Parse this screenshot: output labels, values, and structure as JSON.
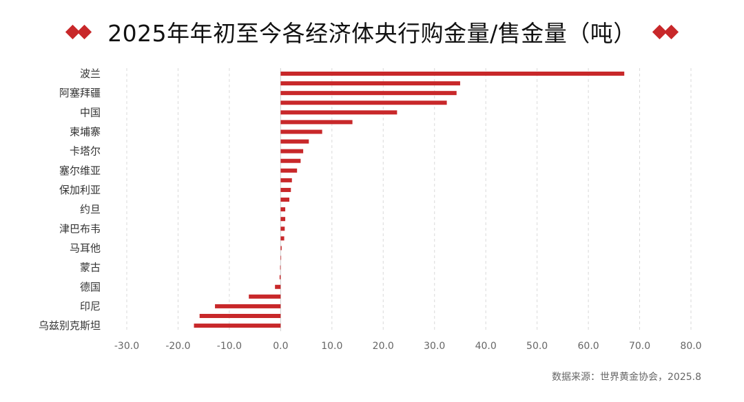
{
  "title": "2025年年初至今各经济体央行购金量/售金量（吨）",
  "source": "数据来源：世界黄金协会，2025.8",
  "colors": {
    "bar": "#c8282a",
    "grid": "#d9d9d9",
    "decoration": "#c8282a"
  },
  "chart_data": {
    "type": "bar",
    "orientation": "horizontal",
    "title": "2025年年初至今各经济体央行购金量/售金量（吨）",
    "xlim": [
      -30,
      80
    ],
    "xticks": [
      "-30.0",
      "-20.0",
      "-10.0",
      "0.0",
      "10.0",
      "20.0",
      "30.0",
      "40.0",
      "50.0",
      "60.0",
      "70.0",
      "80.0"
    ],
    "grid": "vertical-dashed",
    "categories": [
      "波兰",
      "",
      "阿塞拜疆",
      "",
      "中国",
      "",
      "柬埔寨",
      "",
      "卡塔尔",
      "",
      "塞尔维亚",
      "",
      "保加利亚",
      "",
      "约旦",
      "",
      "津巴布韦",
      "",
      "马耳他",
      "",
      "蒙古",
      "",
      "德国",
      "",
      "印尼",
      "",
      "乌兹别克斯坦"
    ],
    "values": [
      67.0,
      35.0,
      34.3,
      32.4,
      22.7,
      14.0,
      8.1,
      5.5,
      4.4,
      3.9,
      3.2,
      2.2,
      2.0,
      1.7,
      0.9,
      0.9,
      0.8,
      0.7,
      0.2,
      0.1,
      -0.1,
      -0.2,
      -1.1,
      -6.2,
      -12.8,
      -15.8,
      -16.9
    ]
  }
}
